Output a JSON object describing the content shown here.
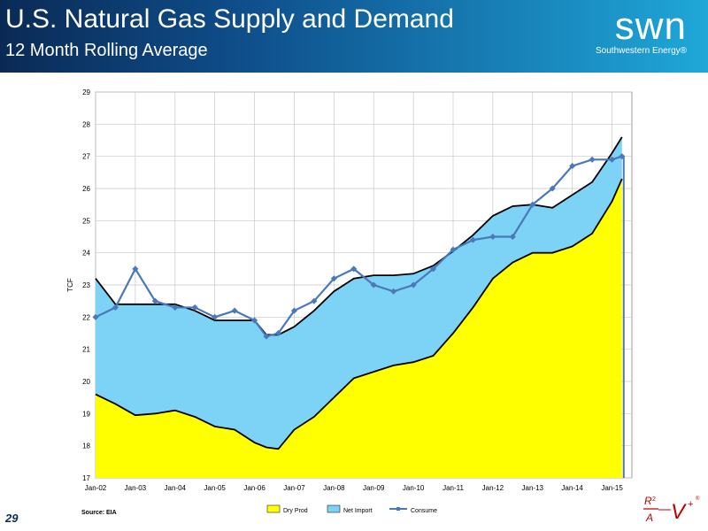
{
  "header": {
    "title": "U.S. Natural Gas Supply and Demand",
    "subtitle": "12 Month Rolling Average",
    "logo_text": "swn",
    "logo_sub": "Southwestern Energy®"
  },
  "footer": {
    "page_number": "29",
    "source": "Source: EIA",
    "corner_logo": {
      "top": "R",
      "top2": "2",
      "bottom": "A",
      "mid": "V",
      "plus": "+",
      "reg": "®"
    }
  },
  "colors": {
    "dry_prod": "#ffff00",
    "net_import": "#7dd3f5",
    "consume": "#4a78b8",
    "supply_line": "#000000"
  },
  "chart_data": {
    "type": "area",
    "title": "",
    "ylabel": "TCF",
    "xlabel": "",
    "ylim": [
      17,
      29
    ],
    "yticks": [
      "17",
      "18",
      "19",
      "20",
      "21",
      "22",
      "23",
      "24",
      "25",
      "26",
      "27",
      "28",
      "29"
    ],
    "xtick_labels": [
      "Jan-02",
      "Jan-03",
      "Jan-04",
      "Jan-05",
      "Jan-06",
      "Jan-07",
      "Jan-08",
      "Jan-09",
      "Jan-10",
      "Jan-11",
      "Jan-12",
      "Jan-13",
      "Jan-14",
      "Jan-15"
    ],
    "grid": true,
    "legend_position": "bottom",
    "legend": [
      "Dry Prod",
      "Net Import",
      "Consume"
    ],
    "x": [
      2002.0,
      2002.5,
      2003.0,
      2003.5,
      2004.0,
      2004.5,
      2005.0,
      2005.5,
      2006.0,
      2006.3,
      2006.6,
      2007.0,
      2007.5,
      2008.0,
      2008.5,
      2009.0,
      2009.5,
      2010.0,
      2010.5,
      2011.0,
      2011.5,
      2012.0,
      2012.5,
      2013.0,
      2013.5,
      2014.0,
      2014.5,
      2015.0,
      2015.25
    ],
    "series": [
      {
        "name": "Dry Prod",
        "values": [
          19.6,
          19.3,
          18.95,
          19.0,
          19.1,
          18.9,
          18.6,
          18.5,
          18.1,
          17.95,
          17.9,
          18.5,
          18.9,
          19.5,
          20.1,
          20.3,
          20.5,
          20.6,
          20.8,
          21.5,
          22.3,
          23.2,
          23.7,
          24.0,
          24.0,
          24.2,
          24.6,
          25.6,
          26.3
        ]
      },
      {
        "name": "Net Import",
        "values": [
          3.6,
          3.1,
          3.45,
          3.4,
          3.3,
          3.3,
          3.3,
          3.4,
          3.8,
          3.5,
          3.55,
          3.2,
          3.3,
          3.3,
          3.1,
          3.0,
          2.8,
          2.75,
          2.8,
          2.55,
          2.25,
          1.95,
          1.75,
          1.5,
          1.4,
          1.6,
          1.6,
          1.5,
          1.3
        ]
      },
      {
        "name": "Consume",
        "values": [
          22.0,
          22.3,
          23.5,
          22.5,
          22.3,
          22.3,
          22.0,
          22.2,
          21.9,
          21.4,
          21.5,
          22.2,
          22.5,
          23.2,
          23.5,
          23.0,
          22.8,
          23.0,
          23.5,
          24.1,
          24.4,
          24.5,
          24.5,
          25.5,
          26.0,
          26.7,
          26.9,
          26.9,
          27.0
        ]
      }
    ]
  }
}
